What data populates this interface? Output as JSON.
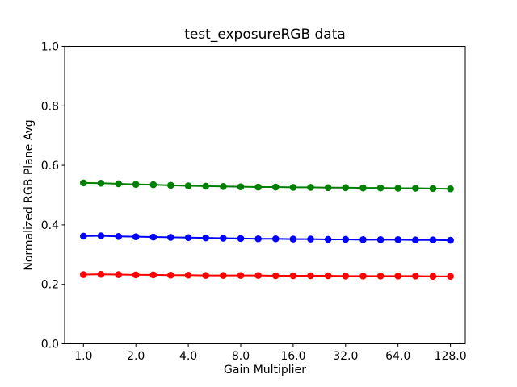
{
  "chart_data": {
    "type": "line",
    "title": "test_exposureRGB data",
    "xlabel": "Gain Multiplier",
    "ylabel": "Normalized RGB Plane Avg",
    "xscale": "log2",
    "ylim": [
      0.0,
      1.0
    ],
    "xticks": [
      1,
      2,
      4,
      8,
      16,
      32,
      64,
      128
    ],
    "xtick_labels": [
      "1.0",
      "2.0",
      "4.0",
      "8.0",
      "16.0",
      "32.0",
      "64.0",
      "128.0"
    ],
    "yticks": [
      0.0,
      0.2,
      0.4,
      0.6,
      0.8,
      1.0
    ],
    "ytick_labels": [
      "0.0",
      "0.2",
      "0.4",
      "0.6",
      "0.8",
      "1.0"
    ],
    "grid": false,
    "legend": null,
    "background_color": "#ffffff",
    "axis_color": "#000000",
    "x": [
      1.0,
      1.26,
      1.59,
      2.0,
      2.52,
      3.17,
      4.0,
      5.04,
      6.35,
      8.0,
      10.08,
      12.7,
      16.0,
      20.16,
      25.4,
      32.0,
      40.32,
      50.8,
      64.0,
      80.63,
      101.59,
      128.0
    ],
    "series": [
      {
        "name": "green-plane",
        "color": "#008000",
        "marker": "circle",
        "values": [
          0.541,
          0.54,
          0.538,
          0.536,
          0.535,
          0.533,
          0.531,
          0.53,
          0.529,
          0.528,
          0.527,
          0.527,
          0.526,
          0.526,
          0.525,
          0.525,
          0.524,
          0.524,
          0.523,
          0.523,
          0.522,
          0.521
        ]
      },
      {
        "name": "blue-plane",
        "color": "#0000ff",
        "marker": "circle",
        "values": [
          0.362,
          0.363,
          0.361,
          0.36,
          0.359,
          0.358,
          0.357,
          0.356,
          0.355,
          0.354,
          0.353,
          0.353,
          0.352,
          0.352,
          0.351,
          0.351,
          0.35,
          0.35,
          0.35,
          0.349,
          0.349,
          0.348
        ]
      },
      {
        "name": "red-plane",
        "color": "#ff0000",
        "marker": "circle",
        "values": [
          0.233,
          0.234,
          0.233,
          0.232,
          0.232,
          0.231,
          0.231,
          0.23,
          0.23,
          0.23,
          0.23,
          0.229,
          0.229,
          0.229,
          0.229,
          0.228,
          0.228,
          0.228,
          0.228,
          0.228,
          0.227,
          0.227
        ]
      }
    ]
  }
}
